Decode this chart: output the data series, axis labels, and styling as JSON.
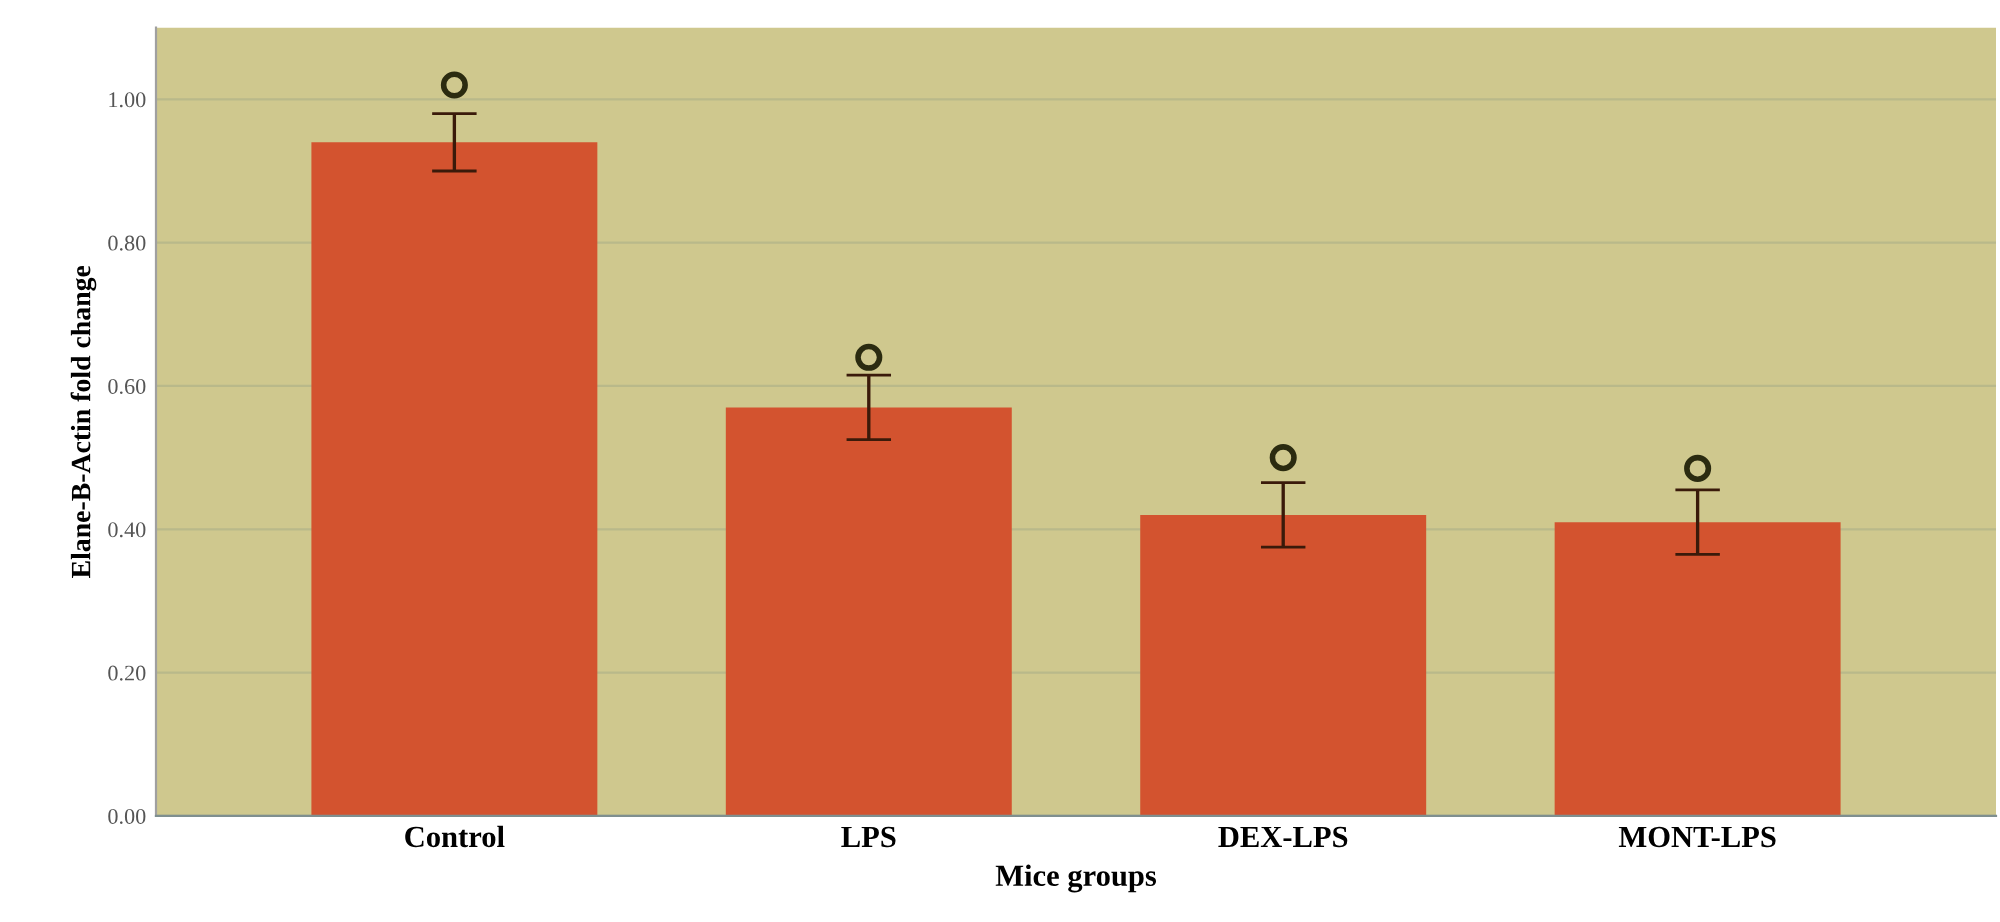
{
  "chart_data": {
    "type": "bar",
    "xlabel": "Mice groups",
    "ylabel": "Elane-B-Actin fold change",
    "categories": [
      "Control",
      "LPS",
      "DEX-LPS",
      "MONT-LPS"
    ],
    "series": [
      {
        "color": "#d3532f",
        "values": [
          0.94,
          0.57,
          0.42,
          0.41
        ],
        "errors": [
          0.04,
          0.045,
          0.045,
          0.045
        ]
      },
      {
        "type": "scatter",
        "color": "#2b2b10",
        "marker": "circle",
        "x": [
          "Control",
          "LPS",
          "DEX-LPS",
          "MONT-LPS"
        ],
        "values": [
          1.02,
          0.64,
          0.5,
          0.485
        ]
      }
    ],
    "ylim": [
      0,
      1.1
    ],
    "yticks": [
      {
        "value": 0,
        "label": "0.00"
      },
      {
        "value": 0.2,
        "label": "0.20"
      },
      {
        "value": 0.4,
        "label": "0.40"
      },
      {
        "value": 0.6,
        "label": "0.60"
      },
      {
        "value": 0.8,
        "label": "0.80"
      },
      {
        "value": 1.0,
        "label": "1.00"
      }
    ],
    "grid": "y",
    "legend": false
  }
}
